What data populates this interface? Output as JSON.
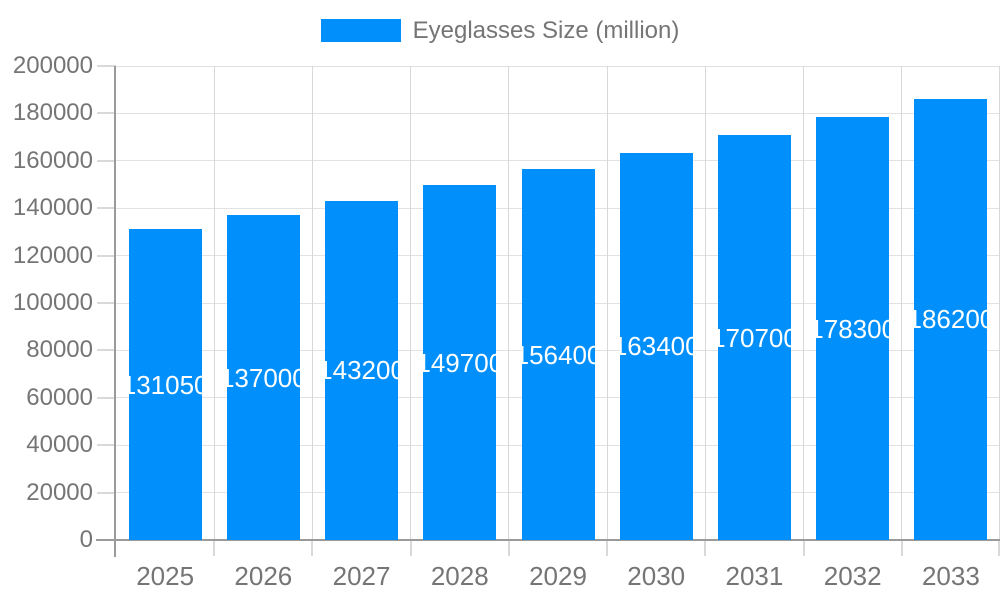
{
  "legend": {
    "label": "Eyeglasses Size (million)"
  },
  "colors": {
    "bar": "#008FFB",
    "bar_label_text": "#ffffff",
    "axis_line": "#9a9a9a",
    "grid_horizontal": "#e2e2e2",
    "grid_vertical": "#d8d8d8",
    "tick": "#d9d9d9",
    "label_text": "#757575",
    "background": "#ffffff"
  },
  "chart_data": {
    "type": "bar",
    "title": "Eyeglasses Size (million)",
    "categories": [
      "2025",
      "2026",
      "2027",
      "2028",
      "2029",
      "2030",
      "2031",
      "2032",
      "2033"
    ],
    "values": [
      131050,
      137000,
      143200,
      149700,
      156400,
      163400,
      170700,
      178300,
      186200
    ],
    "bar_labels": [
      "131050",
      "137000",
      "143200",
      "149700",
      "156400",
      "163400",
      "170700",
      "178300",
      "186200"
    ],
    "xlabel": "",
    "ylabel": "",
    "ylim": [
      0,
      200000
    ],
    "ytick_step": 20000,
    "ytick_labels": [
      "0",
      "20000",
      "40000",
      "60000",
      "80000",
      "100000",
      "120000",
      "140000",
      "160000",
      "180000",
      "200000"
    ],
    "grid": true,
    "legend_position": "top",
    "bar_label_position": "inside-middle"
  }
}
